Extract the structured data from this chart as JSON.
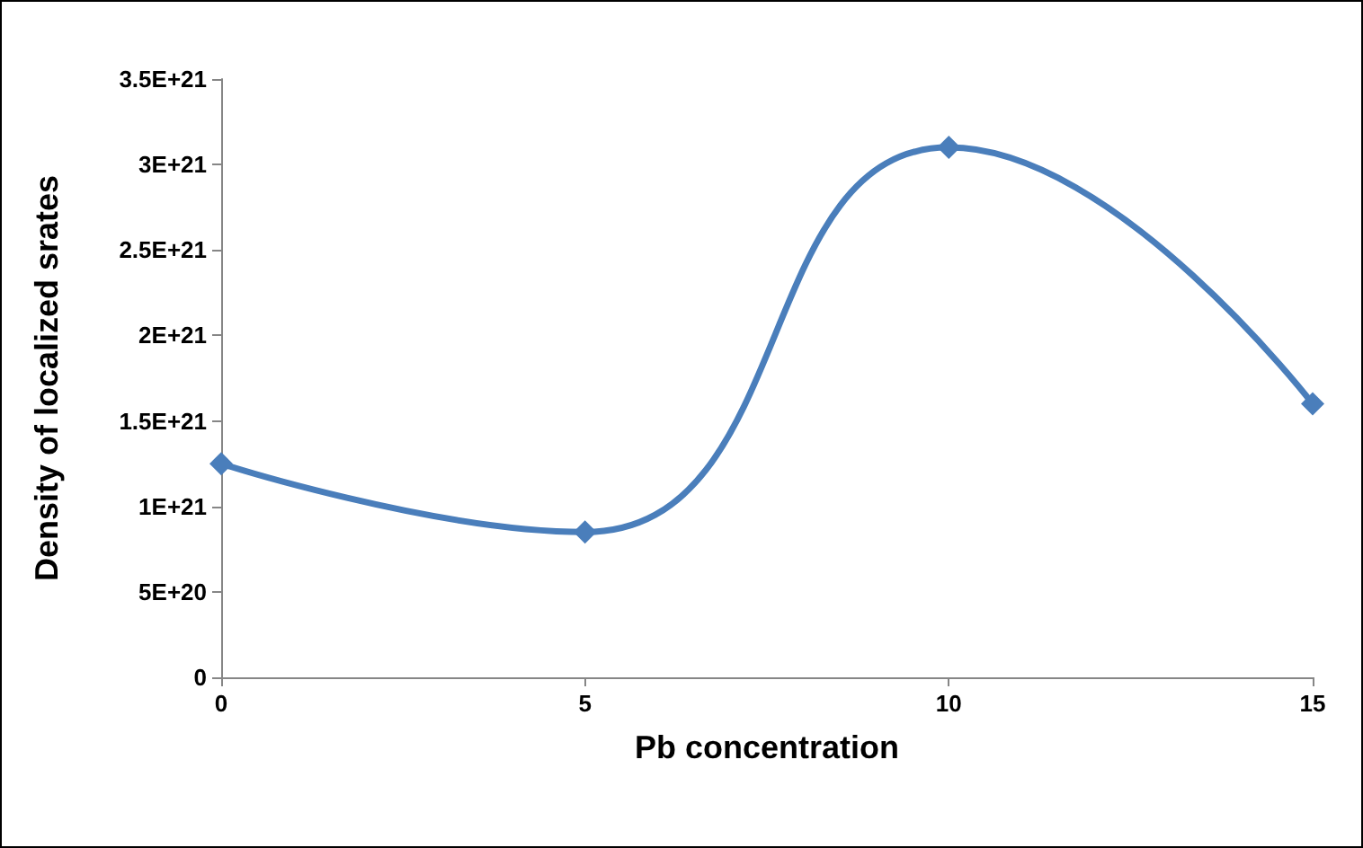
{
  "chart_data": {
    "type": "line",
    "xlabel": "Pb concentration",
    "ylabel": "Density of localized srates",
    "x": [
      0,
      5,
      10,
      15
    ],
    "series": [
      {
        "color": "#4a7ebb",
        "values": [
          1.25e+21,
          8.5e+20,
          3.1e+21,
          1.6e+21
        ]
      }
    ],
    "xlim": [
      0,
      15
    ],
    "xticks": [
      0,
      5,
      10,
      15
    ],
    "ylim": [
      0,
      3.5e+21
    ],
    "yticks": [
      {
        "value": 0,
        "label": "0"
      },
      {
        "value": 5e+20,
        "label": "5E+20"
      },
      {
        "value": 1e+21,
        "label": "1E+21"
      },
      {
        "value": 1.5e+21,
        "label": "1.5E+21"
      },
      {
        "value": 2e+21,
        "label": "2E+21"
      },
      {
        "value": 2.5e+21,
        "label": "2.5E+21"
      },
      {
        "value": 3e+21,
        "label": "3E+21"
      },
      {
        "value": 3.5e+21,
        "label": "3.5E+21"
      }
    ],
    "marker": "diamond",
    "line_style": "solid",
    "grid": false
  }
}
